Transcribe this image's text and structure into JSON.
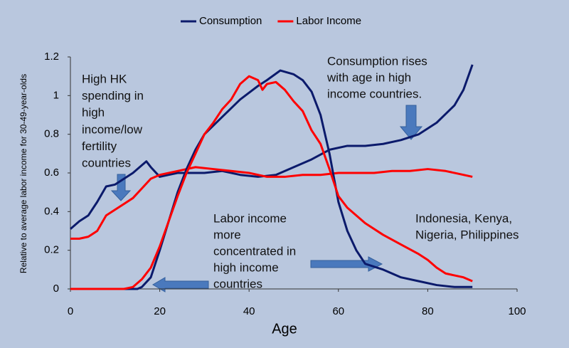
{
  "chart_data": {
    "type": "line",
    "xlabel": "Age",
    "ylabel": "Relative to average labor income for 30-49-year-olds",
    "xlim": [
      0,
      100
    ],
    "xticks": [
      0,
      20,
      40,
      60,
      80,
      100
    ],
    "ylim": [
      0,
      1.2
    ],
    "yticks": [
      0,
      0.2,
      0.4,
      0.6,
      0.8,
      1,
      1.2
    ],
    "grid": false,
    "legend": "top",
    "series": [
      {
        "name": "Consumption",
        "color": "#0b1a6b",
        "x": [
          0,
          2,
          4,
          6,
          8,
          10,
          12,
          14,
          16,
          17,
          18,
          20,
          22,
          24,
          26,
          30,
          34,
          38,
          42,
          46,
          50,
          54,
          58,
          62,
          66,
          70,
          74,
          78,
          82,
          86,
          88,
          90
        ],
        "values": [
          0.31,
          0.35,
          0.38,
          0.45,
          0.53,
          0.54,
          0.57,
          0.6,
          0.64,
          0.66,
          0.63,
          0.58,
          0.59,
          0.6,
          0.6,
          0.6,
          0.61,
          0.59,
          0.58,
          0.59,
          0.63,
          0.67,
          0.72,
          0.74,
          0.74,
          0.75,
          0.77,
          0.8,
          0.86,
          0.95,
          1.03,
          1.16
        ]
      },
      {
        "name": "Labor Income",
        "color": "#ff0000",
        "x": [
          0,
          2,
          4,
          6,
          8,
          10,
          12,
          14,
          16,
          18,
          20,
          24,
          28,
          32,
          36,
          40,
          44,
          48,
          52,
          56,
          60,
          64,
          68,
          72,
          76,
          80,
          84,
          88,
          90
        ],
        "values": [
          0.26,
          0.26,
          0.27,
          0.3,
          0.38,
          0.41,
          0.44,
          0.47,
          0.52,
          0.57,
          0.59,
          0.61,
          0.63,
          0.62,
          0.61,
          0.6,
          0.58,
          0.58,
          0.59,
          0.59,
          0.6,
          0.6,
          0.6,
          0.61,
          0.61,
          0.62,
          0.61,
          0.59,
          0.58
        ]
      },
      {
        "color": "#0b1a6b",
        "x": [
          0,
          15,
          16,
          18,
          20,
          22,
          24,
          26,
          28,
          30,
          34,
          38,
          42,
          44,
          47,
          50,
          52,
          54,
          56,
          58,
          60,
          62,
          64,
          66,
          70,
          74,
          78,
          82,
          86,
          90
        ],
        "values": [
          0,
          0,
          0.01,
          0.06,
          0.2,
          0.35,
          0.5,
          0.62,
          0.72,
          0.8,
          0.89,
          0.98,
          1.05,
          1.08,
          1.13,
          1.11,
          1.08,
          1.02,
          0.9,
          0.7,
          0.45,
          0.3,
          0.2,
          0.13,
          0.1,
          0.06,
          0.04,
          0.02,
          0.01,
          0.01
        ]
      },
      {
        "color": "#ff0000",
        "x": [
          0,
          12,
          14,
          16,
          18,
          20,
          22,
          24,
          26,
          28,
          30,
          32,
          34,
          36,
          38,
          40,
          42,
          43,
          44,
          46,
          48,
          50,
          52,
          54,
          56,
          58,
          60,
          62,
          64,
          66,
          70,
          74,
          78,
          80,
          82,
          84,
          88,
          90
        ],
        "values": [
          0,
          0,
          0.01,
          0.05,
          0.11,
          0.22,
          0.35,
          0.48,
          0.6,
          0.7,
          0.8,
          0.86,
          0.93,
          0.98,
          1.06,
          1.1,
          1.08,
          1.03,
          1.06,
          1.07,
          1.03,
          0.97,
          0.92,
          0.82,
          0.75,
          0.62,
          0.48,
          0.42,
          0.38,
          0.34,
          0.28,
          0.23,
          0.18,
          0.15,
          0.11,
          0.08,
          0.06,
          0.04
        ]
      }
    ],
    "annotations": [
      [
        "High HK",
        "spending in",
        "high",
        "income/low",
        "fertility",
        "countries"
      ],
      [
        "Consumption rises",
        "with age in high",
        "income countries."
      ],
      [
        "Labor income",
        "more",
        "concentrated in",
        "high income",
        "countries"
      ],
      [
        "Indonesia, Kenya,",
        "Nigeria, Philippines"
      ]
    ]
  }
}
